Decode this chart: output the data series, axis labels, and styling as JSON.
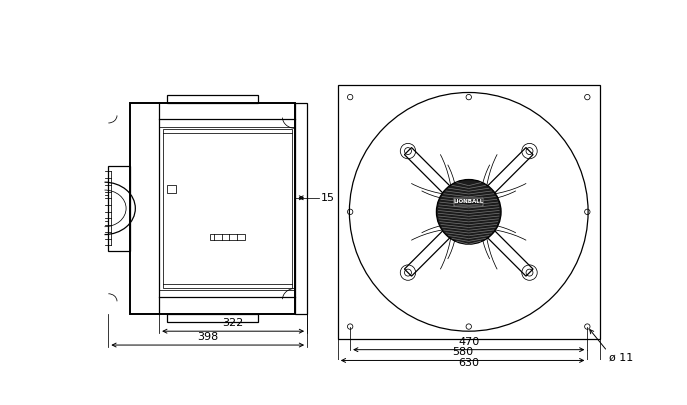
{
  "bg_color": "#ffffff",
  "line_color": "#000000",
  "fig_width": 6.87,
  "fig_height": 4.05,
  "dpi": 100,
  "font_size_dim": 8
}
